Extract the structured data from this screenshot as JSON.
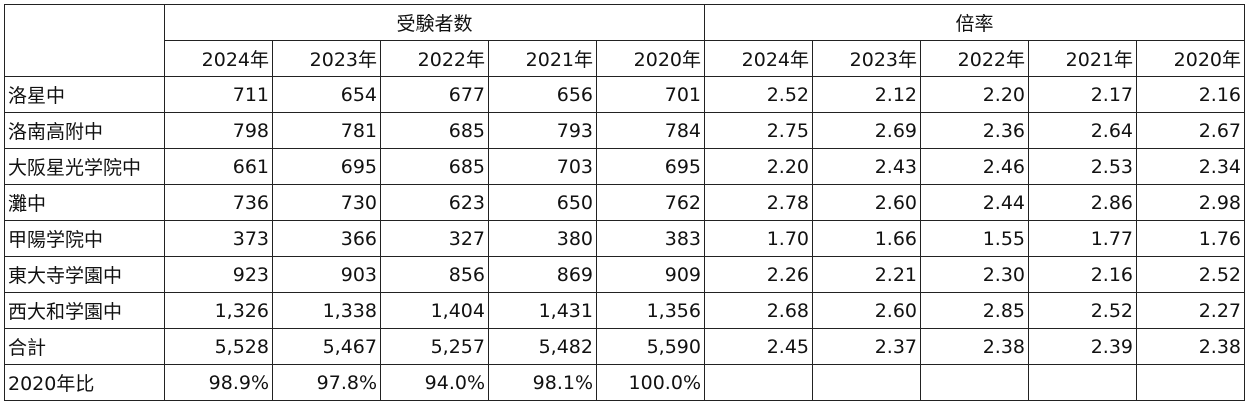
{
  "table": {
    "groups": [
      "受験者数",
      "倍率"
    ],
    "years": [
      "2024年",
      "2023年",
      "2022年",
      "2021年",
      "2020年",
      "2024年",
      "2023年",
      "2022年",
      "2021年",
      "2020年"
    ],
    "rows": [
      {
        "label": "洛星中",
        "values": [
          "711",
          "654",
          "677",
          "656",
          "701",
          "2.52",
          "2.12",
          "2.20",
          "2.17",
          "2.16"
        ]
      },
      {
        "label": "洛南高附中",
        "values": [
          "798",
          "781",
          "685",
          "793",
          "784",
          "2.75",
          "2.69",
          "2.36",
          "2.64",
          "2.67"
        ]
      },
      {
        "label": "大阪星光学院中",
        "values": [
          "661",
          "695",
          "685",
          "703",
          "695",
          "2.20",
          "2.43",
          "2.46",
          "2.53",
          "2.34"
        ]
      },
      {
        "label": "灘中",
        "values": [
          "736",
          "730",
          "623",
          "650",
          "762",
          "2.78",
          "2.60",
          "2.44",
          "2.86",
          "2.98"
        ]
      },
      {
        "label": "甲陽学院中",
        "values": [
          "373",
          "366",
          "327",
          "380",
          "383",
          "1.70",
          "1.66",
          "1.55",
          "1.77",
          "1.76"
        ]
      },
      {
        "label": "東大寺学園中",
        "values": [
          "923",
          "903",
          "856",
          "869",
          "909",
          "2.26",
          "2.21",
          "2.30",
          "2.16",
          "2.52"
        ]
      },
      {
        "label": "西大和学園中",
        "values": [
          "1,326",
          "1,338",
          "1,404",
          "1,431",
          "1,356",
          "2.68",
          "2.60",
          "2.85",
          "2.52",
          "2.27"
        ]
      },
      {
        "label": "合計",
        "values": [
          "5,528",
          "5,467",
          "5,257",
          "5,482",
          "5,590",
          "2.45",
          "2.37",
          "2.38",
          "2.39",
          "2.38"
        ]
      },
      {
        "label": "2020年比",
        "values": [
          "98.9%",
          "97.8%",
          "94.0%",
          "98.1%",
          "100.0%"
        ]
      }
    ]
  }
}
